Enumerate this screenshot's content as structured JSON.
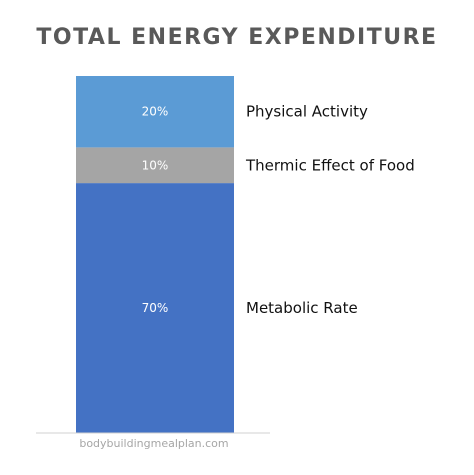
{
  "chart_data": {
    "type": "bar",
    "stacked": true,
    "title": "TOTAL ENERGY EXPENDITURE",
    "categories": [
      ""
    ],
    "series": [
      {
        "name": "Metabolic Rate",
        "values": [
          70
        ],
        "label": "70%",
        "color": "#4472c4"
      },
      {
        "name": "Thermic Effect of Food",
        "values": [
          10
        ],
        "label": "10%",
        "color": "#a5a5a5"
      },
      {
        "name": "Physical Activity",
        "values": [
          20
        ],
        "label": "20%",
        "color": "#5b9bd5"
      }
    ],
    "ylim": [
      0,
      100
    ],
    "grid": false,
    "legend_placement": "right, beside each segment",
    "watermark": "bodybuildingmealplan.com"
  }
}
